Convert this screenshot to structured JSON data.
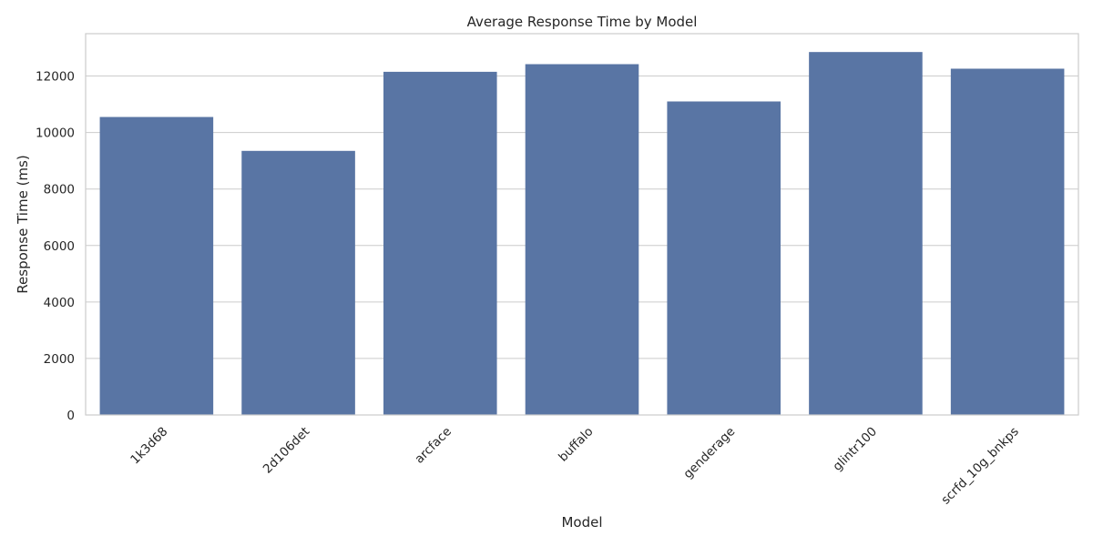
{
  "chart_data": {
    "type": "bar",
    "title": "Average Response Time by Model",
    "xlabel": "Model",
    "ylabel": "Response Time (ms)",
    "categories": [
      "1k3d68",
      "2d106det",
      "arcface",
      "buffalo",
      "genderage",
      "glintr100",
      "scrfd_10g_bnkps"
    ],
    "values": [
      10550,
      9350,
      12150,
      12420,
      11100,
      12850,
      12260
    ],
    "ylim": [
      0,
      13500
    ],
    "yticks": [
      0,
      2000,
      4000,
      6000,
      8000,
      10000,
      12000
    ],
    "grid": true,
    "bar_color": "#5975a4",
    "x_tick_rotation": 45
  }
}
